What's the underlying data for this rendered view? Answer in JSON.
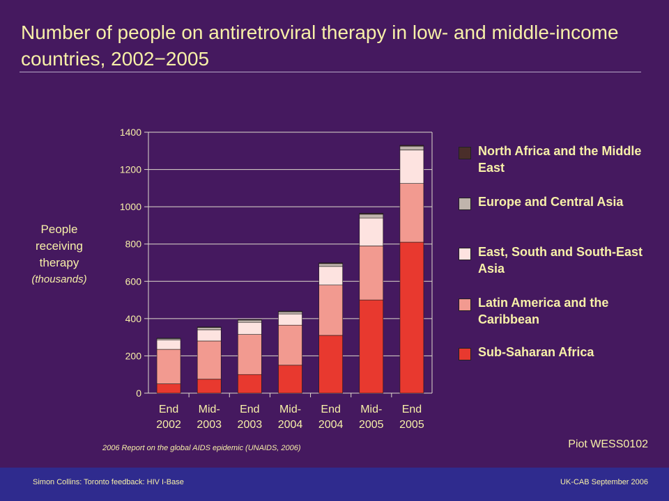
{
  "slide": {
    "title": "Number of people on antiretroviral therapy  in low- and middle-income countries, 2002−2005",
    "ylabel_main": "People receiving therapy",
    "ylabel_unit": "(thousands)",
    "source": "2006 Report on the global AIDS epidemic (UNAIDS, 2006)",
    "ref": "Piot WESS0102"
  },
  "footer": {
    "left": "Simon Collins: Toronto feedback: HIV I-Base",
    "right": "UK-CAB September 2006"
  },
  "chart_data": {
    "type": "bar",
    "stacked": true,
    "title": "Number of people on antiretroviral therapy  in low- and middle-income countries, 2002−2005",
    "ylabel": "People receiving therapy (thousands)",
    "ylim": [
      0,
      1400
    ],
    "yticks": [
      0,
      200,
      400,
      600,
      800,
      1000,
      1200,
      1400
    ],
    "grid": true,
    "legend_position": "right",
    "categories": [
      "End 2002",
      "Mid- 2003",
      "End 2003",
      "Mid- 2004",
      "End 2004",
      "Mid- 2005",
      "End 2005"
    ],
    "category_lines": [
      [
        "End",
        "2002"
      ],
      [
        "Mid-",
        "2003"
      ],
      [
        "End",
        "2003"
      ],
      [
        "Mid-",
        "2004"
      ],
      [
        "End",
        "2004"
      ],
      [
        "Mid-",
        "2005"
      ],
      [
        "End",
        "2005"
      ]
    ],
    "series": [
      {
        "name": "Sub-Saharan Africa",
        "color": "#e8392f",
        "values": [
          50,
          75,
          100,
          150,
          310,
          500,
          810
        ]
      },
      {
        "name": "Latin America and the Caribbean",
        "color": "#f29a90",
        "values": [
          185,
          205,
          215,
          215,
          270,
          290,
          315
        ]
      },
      {
        "name": "East, South and South-East Asia",
        "color": "#fde3e0",
        "values": [
          50,
          60,
          65,
          60,
          100,
          150,
          180
        ]
      },
      {
        "name": "Europe and Central Asia",
        "color": "#c0b4ac",
        "values": [
          8,
          12,
          12,
          12,
          15,
          20,
          20
        ]
      },
      {
        "name": "North Africa and the Middle East",
        "color": "#4a2e2a",
        "values": [
          2,
          3,
          3,
          3,
          4,
          5,
          5
        ]
      }
    ],
    "legend": [
      {
        "label": "North Africa and the Middle East",
        "color": "#4a2e2a"
      },
      {
        "label": "Europe and Central Asia",
        "color": "#c0b4ac"
      },
      {
        "label": "East, South and South-East Asia",
        "color": "#fde3e0"
      },
      {
        "label": "Latin America and the Caribbean",
        "color": "#f29a90"
      },
      {
        "label": "Sub-Saharan Africa",
        "color": "#e8392f"
      }
    ],
    "colors": {
      "text": "#f7f0a8",
      "background": "#45195f",
      "footer": "#2f2b8e",
      "axis": "#e0dccd"
    }
  }
}
